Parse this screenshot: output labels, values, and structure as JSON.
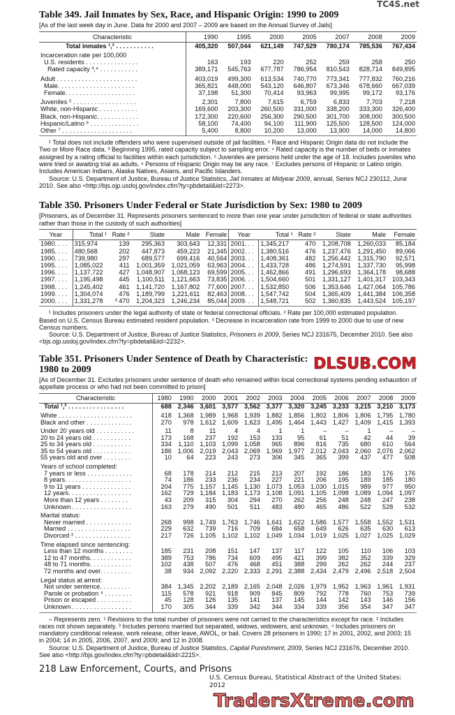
{
  "t349": {
    "title": "Table 349. Jail Inmates by Sex, Race, and Hispanic Origin: 1990 to 2009",
    "note": "[As of the last week day in June. Data for 2000 and 2007 – 2009 are based on the Annual Survey of Jails]",
    "headers": [
      "Characteristic",
      "1990",
      "1995",
      "2000",
      "2005",
      "2007",
      "2008",
      "2009"
    ],
    "rows": [
      {
        "label": "Total inmates ¹,² . . . . . . . . . . .",
        "bold": true,
        "values": [
          "405,320",
          "507,044",
          "621,149",
          "747,529",
          "780,174",
          "785,536",
          "767,434"
        ]
      },
      {
        "label": "Incarceration rate per 100,000",
        "gap": true,
        "values": [
          "",
          "",
          "",
          "",
          "",
          "",
          ""
        ]
      },
      {
        "label": "U.S. residents . . . . . . . . . . . . . . .",
        "indent": 1,
        "values": [
          "163",
          "193",
          "220",
          "252",
          "259",
          "258",
          "250"
        ]
      },
      {
        "label": "Rated capacity ³,⁴ . . . . . . . . . . .",
        "indent": 2,
        "values": [
          "389,171",
          "545,763",
          "677,787",
          "786,954",
          "810,543",
          "828,714",
          "849,895"
        ]
      },
      {
        "label": "Adult . . . . . . . . . . . . . . . . . . . . . . .",
        "gap": true,
        "values": [
          "403,019",
          "499,300",
          "613,534",
          "740,770",
          "773,341",
          "777,832",
          "760,216"
        ]
      },
      {
        "label": "Male. . . . . . . . . . . . . . . . . . . . . .",
        "indent": 1,
        "values": [
          "365,821",
          "448,000",
          "543,120",
          "646,807",
          "673,346",
          "678,660",
          "667,039"
        ]
      },
      {
        "label": "Female. . . . . . . . . . . . . . . . . . . .",
        "indent": 1,
        "values": [
          "37,198",
          "51,300",
          "70,414",
          "93,963",
          "99,995",
          "99,172",
          "93,176"
        ]
      },
      {
        "label": "Juveniles ⁵ . . . . . . . . . . . . . . . . . .",
        "gap": true,
        "values": [
          "2,301",
          "7,800",
          "7,615",
          "6,759",
          "6,833",
          "7,703",
          "7,218"
        ]
      },
      {
        "label": "White, non-Hispanic . . . . . . . . . . .",
        "values": [
          "169,600",
          "203,300",
          "260,500",
          "331,000",
          "338,200",
          "333,300",
          "326,400"
        ]
      },
      {
        "label": "Black, non-Hispanic. . . . . . . . . . . .",
        "values": [
          "172,300",
          "220,600",
          "256,300",
          "290,500",
          "301,700",
          "308,000",
          "300,500"
        ]
      },
      {
        "label": "Hispanic/Latino ⁶ . . . . . . . . . . . . . .",
        "values": [
          "58,100",
          "74,400",
          "94,100",
          "111,900",
          "125,500",
          "128,500",
          "124,000"
        ]
      },
      {
        "label": "Other ⁷ . . . . . . . . . . . . . . . . . . . .",
        "values": [
          "5,400",
          "8,800",
          "10,200",
          "13,000",
          "13,900",
          "14,000",
          "14,800"
        ]
      }
    ],
    "footnotes": "¹ Total does not include offenders who were supervised outside of jail facilities. ² Race and Hispanic Origin data do not include the Two or More Race data. ³ Beginning 1995, rated capacity subject to sampling error. ⁴ Rated capacity is the number of beds or inmates assigned by a rating official to facilities within each jurisdiction. ⁵ Juveniles are persons held under the age of 18. Includes juveniles who were tried or awaiting trial as adults. ⁶ Persons of Hispanic Origin may be any race. ⁷ Excludes persons of Hispanic or Latino origin. Includes American Indians, Alaska Natives, Asians, and Pacific Islanders.",
    "source_pre": "Source: U.S. Department of Justice, Bureau of Justice Statistics, ",
    "source_title": "Jail Inmates at Midyear 2009",
    "source_post": ", annual, Series NCJ 230112, June 2010. See also <http://bjs.ojp.usdoj.gov/index.cfm?ty=pbdetail&iid=2273>."
  },
  "t350": {
    "title": "Table 350. Prisoners Under Federal or State Jurisdiction by Sex: 1980 to 2009",
    "note": "[Prisoners, as of December 31. Represents prisoners sentenced to more than one year under jurisdiction of federal or state authorities rather than those in the custody of such authorities]",
    "headers": [
      "Year",
      "Total ¹",
      "Rate ²",
      "State",
      "Male",
      "Female",
      "Year",
      "Total ¹",
      "Rate ²",
      "State",
      "Male",
      "Female"
    ],
    "rows": [
      [
        "1980. . . .",
        "315,974",
        "139",
        "295,363",
        "303,643",
        "12,331",
        "2001. . .",
        "1,345,217",
        "470",
        "1,208,708",
        "1,260,033",
        "85,184"
      ],
      [
        "1985. . . .",
        "480,568",
        "202",
        "447,873",
        "459,223",
        "21,345",
        "2002. . .",
        "1,380,516",
        "476",
        "1,237,476",
        "1,291,450",
        "89,066"
      ],
      [
        "1990. . . .",
        "739,980",
        "297",
        "689,577",
        "699,416",
        "40,564",
        "2003. . .",
        "1,408,361",
        "482",
        "1,256,442",
        "1,315,790",
        "92,571"
      ],
      [
        "1995. . . .",
        "1,085,022",
        "411",
        "1,001,359",
        "1,021,059",
        "63,963",
        "2004. . .",
        "1,433,728",
        "486",
        "1,274,591",
        "1,337,730",
        "95,998"
      ],
      [
        "1996. . . .",
        "1,137,722",
        "427",
        "1,048,907",
        "1,068,123",
        "69,599",
        "2005. . .",
        "1,462,866",
        "491",
        "1,296,693",
        "1,364,178",
        "98,688"
      ],
      [
        "1997. . . .",
        "1,195,498",
        "445",
        "1,100,511",
        "1,121,663",
        "73,835",
        "2006. . .",
        "1,504,660",
        "501",
        "1,331,127",
        "1,401,317",
        "103,343"
      ],
      [
        "1998. . . .",
        "1,245,402",
        "461",
        "1,141,720",
        "1,167,802",
        "77,600",
        "2007. . .",
        "1,532,850",
        "506",
        "1,353,646",
        "1,427,064",
        "105,786"
      ],
      [
        "1999. . . .",
        "1,304,074",
        "476",
        "1,189,799",
        "1,221,611",
        "82,463",
        "2008. . .",
        "1,547,742",
        "504",
        "1,365,409",
        "1,441,384",
        "106,358"
      ],
      [
        "2000. . . .",
        "1,331,278",
        "³ 470",
        "1,204,323",
        "1,246,234",
        "85,044",
        "2009. . .",
        "1,548,721",
        "502",
        "1,360,835",
        "1,443,524",
        "105,197"
      ]
    ],
    "footnotes": "¹ Includes prisoners under the legal authority of state or federal correctional officials. ² Rate per 100,000 estimated population. Based on U.S. Census Bureau estimated resident population. ³ Decrease in incarceration rate from 1999 to 2000 due to use of new Census numbers.",
    "source_pre": "Source: U.S. Department of Justice, Bureau of Justice Statistics, ",
    "source_title": "Prisoners in 2009",
    "source_post": ", Series NCJ 231675, December 2010. See also <bjs.ojp.usdoj.gov/index.cfm?ty=pbdetail&iid=2232>."
  },
  "t351": {
    "title": "Table 351. Prisoners Under Sentence of Death by Characteristic: 1980 to 2009",
    "note": "[As of December 31. Excludes prisoners under sentence of death who remained within local correctional systems pending exhaustion of appellate process or who had not been committed to prison]",
    "headers": [
      "Characteristic",
      "1980",
      "1990",
      "2000",
      "2001",
      "2002",
      "2003",
      "2004",
      "2005",
      "2006",
      "2007",
      "2008",
      "2009"
    ],
    "rows": [
      {
        "label": "Total ¹,² . . . . . . . . . . . . . . . .",
        "bold": true,
        "indent": 1,
        "values": [
          "688",
          "2,346",
          "3,601",
          "3,577",
          "3,562",
          "3,377",
          "3,320",
          "3,245",
          "3,233",
          "3,215",
          "3,210",
          "3,173"
        ]
      },
      {
        "label": "White . . . . . . . . . . . . . . . . . . . . .",
        "gap": true,
        "values": [
          "418",
          "1,368",
          "1,989",
          "1,968",
          "1,939",
          "1,882",
          "1,856",
          "1,802",
          "1,806",
          "1,806",
          "1,795",
          "1,780"
        ]
      },
      {
        "label": "Black and other . . . . . . . . . . . . .",
        "values": [
          "270",
          "978",
          "1,612",
          "1,609",
          "1,623",
          "1,495",
          "1,464",
          "1,443",
          "1,427",
          "1,409",
          "1,415",
          "1,393"
        ]
      },
      {
        "label": "Under 20 years old . . . . . . . . . . .",
        "gap": true,
        "values": [
          "11",
          "8",
          "11",
          "4",
          "4",
          "1",
          "1",
          "–",
          "–",
          "1",
          "–",
          "–"
        ]
      },
      {
        "label": "20 to 24 years old . . . . . . . . . . .",
        "values": [
          "173",
          "168",
          "237",
          "192",
          "153",
          "133",
          "95",
          "61",
          "51",
          "42",
          "44",
          "39"
        ]
      },
      {
        "label": "25 to 34 years old . . . . . . . . . . .",
        "values": [
          "334",
          "1,110",
          "1,103",
          "1,099",
          "1,058",
          "965",
          "896",
          "816",
          "735",
          "680",
          "610",
          "564"
        ]
      },
      {
        "label": "35 to 54 years old . . . . . . . . . . .",
        "values": [
          "186",
          "1,006",
          "2,019",
          "2,043",
          "2,069",
          "1,969",
          "1,977",
          "2,012",
          "2,043",
          "2,060",
          "2,076",
          "2,062"
        ]
      },
      {
        "label": "55 years old and over . . . . . . . .",
        "values": [
          "10",
          "64",
          "223",
          "243",
          "273",
          "306",
          "345",
          "365",
          "399",
          "437",
          "477",
          "508"
        ]
      },
      {
        "label": "Years of school completed:",
        "gap": true,
        "values": [
          "",
          "",
          "",
          "",
          "",
          "",
          "",
          "",
          "",
          "",
          "",
          ""
        ]
      },
      {
        "label": "7 years or less . . . . . . . . . . . . .",
        "indent": 1,
        "values": [
          "68",
          "178",
          "214",
          "212",
          "215",
          "213",
          "207",
          "192",
          "186",
          "183",
          "176",
          "176"
        ]
      },
      {
        "label": "8 years. . . . . . . . . . . . . . . . . . .",
        "indent": 1,
        "values": [
          "74",
          "186",
          "233",
          "236",
          "234",
          "227",
          "221",
          "206",
          "195",
          "189",
          "185",
          "180"
        ]
      },
      {
        "label": "9 to 11 years . . . . . . . . . . . . . .",
        "indent": 1,
        "values": [
          "204",
          "775",
          "1,157",
          "1,145",
          "1,130",
          "1,073",
          "1,053",
          "1,030",
          "1,015",
          "989",
          "977",
          "950"
        ]
      },
      {
        "label": "12 years. . . . . . . . . . . . . . . . . .",
        "indent": 1,
        "values": [
          "162",
          "729",
          "1,184",
          "1,183",
          "1,173",
          "1,108",
          "1,091",
          "1,105",
          "1,098",
          "1,089",
          "1,094",
          "1,097"
        ]
      },
      {
        "label": "More than 12 years . . . . . . . .",
        "indent": 1,
        "values": [
          "43",
          "209",
          "315",
          "304",
          "294",
          "270",
          "262",
          "256",
          "248",
          "248",
          "247",
          "238"
        ]
      },
      {
        "label": "Unknown . . . . . . . . . . . . . . . . .",
        "indent": 1,
        "values": [
          "163",
          "279",
          "490",
          "501",
          "511",
          "483",
          "480",
          "465",
          "486",
          "522",
          "528",
          "532"
        ]
      },
      {
        "label": "Marital status:",
        "gap": true,
        "values": [
          "",
          "",
          "",
          "",
          "",
          "",
          "",
          "",
          "",
          "",
          "",
          ""
        ]
      },
      {
        "label": "Never married . . . . . . . . . . . . .",
        "indent": 1,
        "values": [
          "268",
          "998",
          "1,749",
          "1,763",
          "1,746",
          "1,641",
          "1,622",
          "1,586",
          "1,577",
          "1,558",
          "1,552",
          "1,531"
        ]
      },
      {
        "label": "Married . . . . . . . . . . . . . . . . . .",
        "indent": 1,
        "values": [
          "229",
          "632",
          "739",
          "716",
          "709",
          "684",
          "658",
          "649",
          "626",
          "635",
          "630",
          "613"
        ]
      },
      {
        "label": "Divorced ³ . . . . . . . . . . . . . . . .",
        "indent": 1,
        "values": [
          "217",
          "726",
          "1,105",
          "1,102",
          "1,102",
          "1,049",
          "1,034",
          "1,019",
          "1,025",
          "1,027",
          "1,025",
          "1,029"
        ]
      },
      {
        "label": "Time elapsed since sentencing:",
        "gap": true,
        "values": [
          "",
          "",
          "",
          "",
          "",
          "",
          "",
          "",
          "",
          "",
          "",
          ""
        ]
      },
      {
        "label": "Less than 12 months . . . . . . . .",
        "indent": 1,
        "values": [
          "185",
          "231",
          "208",
          "151",
          "147",
          "137",
          "117",
          "122",
          "105",
          "110",
          "106",
          "103"
        ]
      },
      {
        "label": "12 to 47 months. . . . . . . . . . . .",
        "indent": 1,
        "values": [
          "389",
          "753",
          "786",
          "734",
          "609",
          "495",
          "421",
          "399",
          "382",
          "352",
          "339",
          "329"
        ]
      },
      {
        "label": "48 to 71 months. . . . . . . . . . . .",
        "indent": 1,
        "values": [
          "102",
          "438",
          "507",
          "476",
          "468",
          "451",
          "388",
          "299",
          "262",
          "262",
          "244",
          "237"
        ]
      },
      {
        "label": "72 months and over. . . . . . . . .",
        "indent": 1,
        "values": [
          "38",
          "934",
          "2,092",
          "2,220",
          "2,333",
          "2,291",
          "2,388",
          "2,434",
          "2,479",
          "2,496",
          "2,518",
          "2,504"
        ]
      },
      {
        "label": "Legal status at arrest:",
        "gap": true,
        "values": [
          "",
          "",
          "",
          "",
          "",
          "",
          "",
          "",
          "",
          "",
          "",
          ""
        ]
      },
      {
        "label": "Not under sentence. . . . . . . . .",
        "indent": 1,
        "values": [
          "384",
          "1,345",
          "2,202",
          "2,189",
          "2,165",
          "2,048",
          "2,026",
          "1,979",
          "1,952",
          "1,963",
          "1,961",
          "1,931"
        ]
      },
      {
        "label": "Parole or probation ⁴ . . . . . . . .",
        "indent": 1,
        "values": [
          "115",
          "578",
          "921",
          "918",
          "909",
          "845",
          "809",
          "792",
          "778",
          "760",
          "753",
          "739"
        ]
      },
      {
        "label": "Prison or escaped . . . . . . . . . .",
        "indent": 1,
        "values": [
          "45",
          "128",
          "126",
          "135",
          "141",
          "137",
          "145",
          "144",
          "142",
          "143",
          "146",
          "156"
        ]
      },
      {
        "label": "Unknown . . . . . . . . . . . . . . . . .",
        "indent": 1,
        "values": [
          "170",
          "305",
          "344",
          "339",
          "342",
          "344",
          "334",
          "339",
          "356",
          "354",
          "347",
          "347"
        ]
      }
    ],
    "footnotes": "– Represents zero. ¹ Revisions to the total number of prisoners were not carried to the characteristics except for race. ² Includes races not shown separately. ³ Includes persons married but separated, widows, widowers, and unknown. ⁴ Includes prisoners on mandatory conditional release, work release, other leave, AWOL, or bail. Covers 28 prisoners in 1990; 17 in 2001, 2002, and 2003; 15 in 2004; 14 in 2005, 2006, 2007, and 2009; and 12 in 2008.",
    "source_pre": "Source: U.S. Department of Justice, Bureau of Justice Statistics, ",
    "source_title": "Capital Punishment, 2009",
    "source_post": ", Series NCJ 231676, December 2010. See also <http://bjs.gov/index.cfm?ty=pbdetail&iid=2215>."
  },
  "footer": {
    "page": "218  Law Enforcement, Courts, and Prisons",
    "credit": "U.S. Census Bureau, Statistical Abstract of the United States: 2012"
  },
  "watermarks": {
    "top": "TC4S.net",
    "middle": "DLSUB.COM",
    "bottom": "TradersXtreme.com"
  }
}
